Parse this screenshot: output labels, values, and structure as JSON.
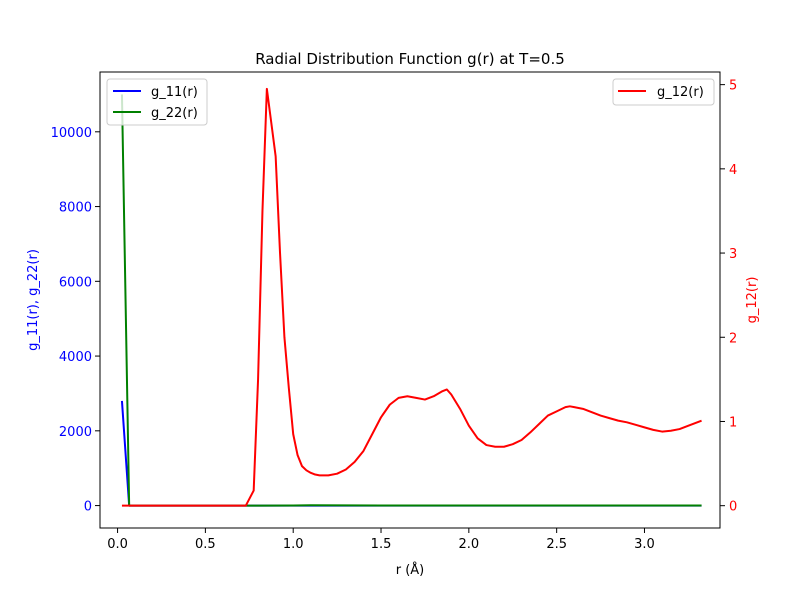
{
  "chart_data": {
    "type": "line",
    "title": "Radial Distribution Function g(r) at T=0.5",
    "xlabel": "r (Å)",
    "ylabel_left": "g_11(r), g_22(r)",
    "ylabel_right": "g_12(r)",
    "xlim": [
      -0.1,
      3.43
    ],
    "ylim_left": [
      -600,
      11600
    ],
    "ylim_right": [
      -0.265,
      5.15
    ],
    "x_ticks": [
      0.0,
      0.5,
      1.0,
      1.5,
      2.0,
      2.5,
      3.0
    ],
    "x_tick_labels": [
      "0.0",
      "0.5",
      "1.0",
      "1.5",
      "2.0",
      "2.5",
      "3.0"
    ],
    "y_left_ticks": [
      0,
      2000,
      4000,
      6000,
      8000,
      10000
    ],
    "y_left_tick_labels": [
      "0",
      "2000",
      "4000",
      "6000",
      "8000",
      "10000"
    ],
    "y_right_ticks": [
      0,
      1,
      2,
      3,
      4,
      5
    ],
    "y_right_tick_labels": [
      "0",
      "1",
      "2",
      "3",
      "4",
      "5"
    ],
    "left_color": "#0000ff",
    "right_color": "#ff0000",
    "grid": false,
    "legend_left": "top-left",
    "legend_right": "top-right",
    "series": [
      {
        "name": "g_11(r)",
        "axis": "left",
        "color": "#0000ff",
        "x": [
          0.025,
          0.066,
          0.075,
          0.1,
          0.5,
          1.0,
          1.5,
          2.0,
          2.5,
          3.0,
          3.325
        ],
        "y": [
          2800,
          0,
          0,
          0,
          0,
          0,
          0,
          0,
          0,
          0,
          0
        ]
      },
      {
        "name": "g_22(r)",
        "axis": "left",
        "color": "#008000",
        "x": [
          0.025,
          0.066,
          0.075,
          0.1,
          0.5,
          0.8,
          1.0,
          1.1,
          1.5,
          2.0,
          2.5,
          3.0,
          3.325
        ],
        "y": [
          11000,
          0,
          0,
          0,
          0,
          0,
          2,
          8,
          3,
          3,
          2,
          2,
          2
        ]
      },
      {
        "name": "g_12(r)",
        "axis": "right",
        "color": "#ff0000",
        "x": [
          0.025,
          0.3,
          0.5,
          0.7,
          0.73,
          0.775,
          0.8,
          0.825,
          0.85,
          0.875,
          0.9,
          0.925,
          0.95,
          0.975,
          1.0,
          1.025,
          1.05,
          1.075,
          1.1,
          1.125,
          1.15,
          1.2,
          1.25,
          1.3,
          1.35,
          1.4,
          1.45,
          1.5,
          1.55,
          1.6,
          1.65,
          1.7,
          1.75,
          1.8,
          1.85,
          1.875,
          1.9,
          1.95,
          2.0,
          2.05,
          2.1,
          2.15,
          2.2,
          2.25,
          2.3,
          2.35,
          2.4,
          2.45,
          2.5,
          2.55,
          2.575,
          2.6,
          2.65,
          2.7,
          2.75,
          2.8,
          2.85,
          2.9,
          2.95,
          3.0,
          3.05,
          3.1,
          3.15,
          3.2,
          3.25,
          3.325
        ],
        "y": [
          0,
          0,
          0,
          0,
          0,
          0.18,
          1.5,
          3.5,
          4.95,
          4.55,
          4.15,
          3.0,
          2.0,
          1.4,
          0.85,
          0.6,
          0.47,
          0.42,
          0.39,
          0.37,
          0.36,
          0.36,
          0.38,
          0.43,
          0.52,
          0.65,
          0.85,
          1.05,
          1.2,
          1.28,
          1.3,
          1.28,
          1.26,
          1.3,
          1.36,
          1.38,
          1.32,
          1.15,
          0.95,
          0.8,
          0.72,
          0.7,
          0.7,
          0.73,
          0.78,
          0.87,
          0.97,
          1.07,
          1.12,
          1.17,
          1.18,
          1.17,
          1.15,
          1.11,
          1.07,
          1.04,
          1.01,
          0.99,
          0.96,
          0.93,
          0.9,
          0.88,
          0.89,
          0.91,
          0.95,
          1.01
        ]
      }
    ]
  }
}
